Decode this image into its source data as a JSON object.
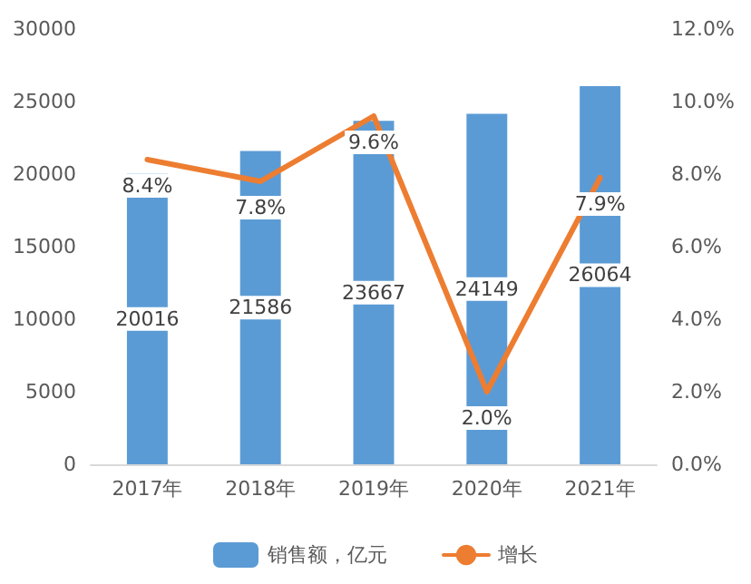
{
  "chart_data": {
    "type": "bar",
    "categories": [
      "2017年",
      "2018年",
      "2019年",
      "2020年",
      "2021年"
    ],
    "series": [
      {
        "name": "销售额，亿元",
        "color": "#5b9bd5",
        "values": [
          20016,
          21586,
          23667,
          24149,
          26064
        ],
        "value_labels": [
          "20016",
          "21586",
          "23667",
          "24149",
          "26064"
        ]
      },
      {
        "name": "增长",
        "type": "line",
        "axis": "y2",
        "color": "#ed7d31",
        "values": [
          8.4,
          7.8,
          9.6,
          2.0,
          7.9
        ],
        "value_labels": [
          "8.4%",
          "7.8%",
          "9.6%",
          "2.0%",
          "7.9%"
        ]
      }
    ],
    "ylim": [
      0,
      30000
    ],
    "yticks": [
      0,
      5000,
      10000,
      15000,
      20000,
      25000,
      30000
    ],
    "y2lim": [
      0,
      12
    ],
    "y2ticks": [
      {
        "value": 0,
        "label": "0.0%"
      },
      {
        "value": 2,
        "label": "2.0%"
      },
      {
        "value": 4,
        "label": "4.0%"
      },
      {
        "value": 6,
        "label": "6.0%"
      },
      {
        "value": 8,
        "label": "8.0%"
      },
      {
        "value": 10,
        "label": "10.0%"
      },
      {
        "value": 12,
        "label": "12.0%"
      }
    ],
    "grid": false,
    "legend": "bottom",
    "marker": "none",
    "line_style": "solid"
  }
}
